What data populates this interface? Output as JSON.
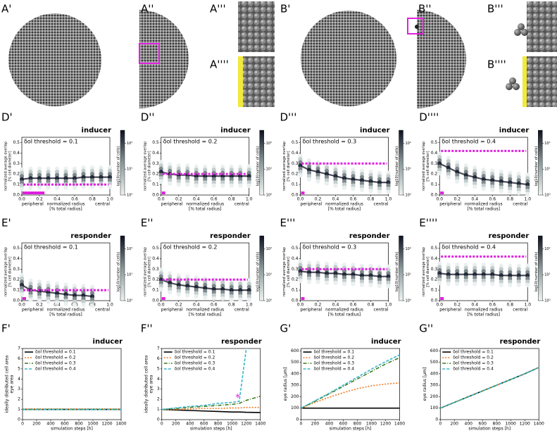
{
  "image_panels": [
    {
      "label": "A'"
    },
    {
      "label": "A''"
    },
    {
      "label": "A'''"
    },
    {
      "label": "A''''"
    },
    {
      "label": "B'"
    },
    {
      "label": "B''"
    },
    {
      "label": "B'''"
    },
    {
      "label": "B''''"
    }
  ],
  "hexbin_axes": {
    "xlim": [
      0,
      1
    ],
    "xticks": [
      {
        "value": 0,
        "label": "0.0"
      },
      0.2,
      0.4,
      0.6,
      0.8,
      {
        "value": 1,
        "label": "1.0"
      }
    ],
    "ylim": [
      0,
      0.55
    ],
    "yticks": [
      {
        "value": 0,
        "label": "0.0"
      },
      0.1,
      0.2,
      0.3,
      0.4,
      0.5
    ],
    "xlabel": "normalized radius",
    "xlabel_note": "[% total radius]",
    "x_left": "peripheral",
    "x_right": "central",
    "ylabel": "normalized average overlap",
    "ylabel_note": "[% cell diameter]",
    "colorbar_label": "log10(number of cells)",
    "colorbar_lim": [
      0,
      2.5
    ],
    "colorbar_ticks": [
      {
        "value": 0,
        "label": "10⁰"
      },
      {
        "value": 1,
        "label": "10¹"
      },
      {
        "value": 2,
        "label": "10²"
      }
    ]
  },
  "chart_data": [
    {
      "type": "hexbin",
      "label": "D'",
      "title": "inducer",
      "annotation": "δol threshold = 0.1",
      "threshold": 0.1,
      "marker_range": [
        0,
        0.25
      ],
      "x": [
        0,
        0.1,
        0.2,
        0.3,
        0.4,
        0.5,
        0.6,
        0.7,
        0.8,
        0.9,
        1
      ],
      "values": [
        0.15,
        0.16,
        0.16,
        0.16,
        0.16,
        0.16,
        0.16,
        0.17,
        0.17,
        0.17,
        0.17
      ]
    },
    {
      "type": "hexbin",
      "label": "D''",
      "title": "inducer",
      "annotation": "δol threshold = 0.2",
      "threshold": 0.2,
      "marker_range": [
        0,
        0.04
      ],
      "x": [
        0,
        0.1,
        0.2,
        0.3,
        0.4,
        0.5,
        0.6,
        0.7,
        0.8,
        0.9,
        1
      ],
      "values": [
        0.22,
        0.2,
        0.19,
        0.19,
        0.18,
        0.18,
        0.18,
        0.18,
        0.18,
        0.18,
        0.18
      ]
    },
    {
      "type": "hexbin",
      "label": "D'''",
      "title": "inducer",
      "annotation": "δol threshold = 0.3",
      "threshold": 0.3,
      "marker_range": [
        0,
        0.04
      ],
      "x": [
        0,
        0.1,
        0.2,
        0.3,
        0.4,
        0.5,
        0.6,
        0.7,
        0.8,
        0.9,
        1
      ],
      "values": [
        0.28,
        0.24,
        0.22,
        0.2,
        0.18,
        0.16,
        0.15,
        0.14,
        0.13,
        0.12,
        0.12
      ]
    },
    {
      "type": "hexbin",
      "label": "D''''",
      "title": "inducer",
      "annotation": "δol threshold = 0.4",
      "threshold": 0.42,
      "marker_range": [
        0,
        0.04
      ],
      "x": [
        0,
        0.1,
        0.2,
        0.3,
        0.4,
        0.5,
        0.6,
        0.7,
        0.8,
        0.9,
        1
      ],
      "values": [
        0.3,
        0.26,
        0.22,
        0.19,
        0.17,
        0.15,
        0.14,
        0.13,
        0.12,
        0.11,
        0.1
      ]
    },
    {
      "type": "hexbin",
      "label": "E'",
      "title": "responder",
      "annotation": "δol threshold = 0.1",
      "threshold": 0.1,
      "marker_range": [
        0,
        0.04
      ],
      "x": [
        0,
        0.1,
        0.2,
        0.3,
        0.4,
        0.5,
        0.6,
        0.7,
        0.8,
        0.9,
        1
      ],
      "values": [
        0.15,
        0.1,
        0.09,
        0.08,
        0.07,
        0.06,
        0.05,
        0.05,
        0.04,
        null,
        null
      ]
    },
    {
      "type": "hexbin",
      "label": "E''",
      "title": "responder",
      "annotation": "δol threshold = 0.2",
      "threshold": 0.2,
      "marker_range": [
        0,
        0.04
      ],
      "x": [
        0,
        0.1,
        0.2,
        0.3,
        0.4,
        0.5,
        0.6,
        0.7,
        0.8,
        0.9,
        1
      ],
      "values": [
        0.2,
        0.17,
        0.15,
        0.14,
        0.13,
        0.12,
        0.11,
        0.11,
        0.1,
        0.1,
        0.1
      ]
    },
    {
      "type": "hexbin",
      "label": "E'''",
      "title": "responder",
      "annotation": "δol threshold = 0.3",
      "threshold": 0.3,
      "marker_range": [
        0,
        0.04
      ],
      "x": [
        0,
        0.1,
        0.2,
        0.3,
        0.4,
        0.5,
        0.6,
        0.7,
        0.8,
        0.9,
        1
      ],
      "values": [
        0.28,
        0.27,
        0.27,
        0.26,
        0.26,
        0.25,
        0.25,
        0.24,
        0.24,
        0.23,
        0.23
      ]
    },
    {
      "type": "hexbin",
      "label": "E''''",
      "title": "responder",
      "annotation": "δol threshold = 0.4",
      "threshold": 0.42,
      "marker_range": [
        0,
        0.04
      ],
      "x": [
        0,
        0.1,
        0.2,
        0.3,
        0.4,
        0.5,
        0.6,
        0.7,
        0.8,
        0.9,
        1
      ],
      "values": [
        0.26,
        0.25,
        0.25,
        0.25,
        0.25,
        0.25,
        0.25,
        0.24,
        0.24,
        0.24,
        0.24
      ]
    },
    {
      "type": "line",
      "label": "F'",
      "title": "inducer",
      "ylabel": "ideally distributed cell area",
      "ylabel_note": "eye area",
      "xlabel": "simulation steps [h]",
      "xlim": [
        0,
        1400
      ],
      "xticks": [
        0,
        200,
        400,
        600,
        800,
        1000,
        1200,
        1400
      ],
      "ylim": [
        0,
        7
      ],
      "yticks": [
        0,
        1,
        2,
        3,
        4,
        5,
        6,
        7
      ],
      "x": [
        0,
        200,
        400,
        600,
        800,
        1000,
        1100,
        1200,
        1400
      ],
      "series": [
        {
          "name": "δol threshold = 0.1",
          "color": "#000000",
          "dash": "",
          "values": [
            1,
            1,
            1,
            1,
            1,
            1,
            1,
            1,
            1
          ]
        },
        {
          "name": "δol threshold = 0.2",
          "color": "#f07a23",
          "dash": "2 2",
          "values": [
            1.05,
            1.05,
            1.05,
            1.05,
            1.05,
            1.05,
            1.05,
            1.05,
            1.05
          ]
        },
        {
          "name": "δol threshold = 0.3",
          "color": "#3d7a1d",
          "dash": "5 2 1 2",
          "values": [
            1,
            1,
            1,
            1,
            1,
            1,
            1,
            1,
            1
          ]
        },
        {
          "name": "δol threshold = 0.4",
          "color": "#3ab5c8",
          "dash": "4 2",
          "values": [
            1,
            1,
            1,
            1,
            1,
            1,
            1,
            1,
            1
          ]
        }
      ]
    },
    {
      "type": "line",
      "label": "F''",
      "title": "responder",
      "ylabel": "ideally distributed cell area",
      "ylabel_note": "eye area",
      "xlabel": "simulation steps [h]",
      "xlim": [
        0,
        1400
      ],
      "xticks": [
        0,
        200,
        400,
        600,
        800,
        1000,
        1200,
        1400
      ],
      "ylim": [
        0,
        7
      ],
      "yticks": [
        0,
        1,
        2,
        3,
        4,
        5,
        6,
        7
      ],
      "x": [
        0,
        200,
        400,
        600,
        800,
        1000,
        1100,
        1200,
        1400
      ],
      "marker": {
        "text": "*",
        "x": 1080,
        "y": 2.1
      },
      "series": [
        {
          "name": "δol threshold = 0.1",
          "color": "#000000",
          "dash": "",
          "values": [
            1,
            0.95,
            0.9,
            0.85,
            0.8,
            0.75,
            0.75,
            0.72,
            0.7
          ]
        },
        {
          "name": "δol threshold = 0.2",
          "color": "#f07a23",
          "dash": "2 2",
          "values": [
            1,
            1,
            1.05,
            1.1,
            1.1,
            1.15,
            1.15,
            1.2,
            1.2
          ]
        },
        {
          "name": "δol threshold = 0.3",
          "color": "#3d7a1d",
          "dash": "5 2 1 2",
          "values": [
            1,
            1.1,
            1.2,
            1.3,
            1.4,
            1.5,
            1.6,
            1.9,
            2.3
          ]
        },
        {
          "name": "δol threshold = 0.4",
          "color": "#3ab5c8",
          "dash": "4 2",
          "values": [
            1,
            1.15,
            1.3,
            1.4,
            1.6,
            1.7,
            1.8,
            7,
            null
          ]
        }
      ]
    },
    {
      "type": "line",
      "label": "G'",
      "title": "inducer",
      "ylabel": "eye radius [µm]",
      "xlabel": "simulation steps [h]",
      "xlim": [
        0,
        1400
      ],
      "xticks": [
        0,
        200,
        400,
        600,
        800,
        1000,
        1200,
        1400
      ],
      "ylim": [
        0,
        620
      ],
      "yticks": [
        0,
        100,
        200,
        300,
        400,
        500,
        600
      ],
      "x": [
        0,
        200,
        400,
        600,
        800,
        1000,
        1200,
        1400
      ],
      "series": [
        {
          "name": "δol threshold = 0.1",
          "color": "#000000",
          "dash": "",
          "values": [
            100,
            100,
            100,
            100,
            100,
            100,
            100,
            100
          ]
        },
        {
          "name": "δol threshold = 0.2",
          "color": "#f07a23",
          "dash": "2 2",
          "values": [
            100,
            150,
            195,
            235,
            270,
            295,
            310,
            320
          ]
        },
        {
          "name": "δol threshold = 0.3",
          "color": "#3d7a1d",
          "dash": "5 2 1 2",
          "values": [
            100,
            160,
            225,
            290,
            355,
            420,
            485,
            540
          ]
        },
        {
          "name": "δol threshold = 0.4",
          "color": "#3ab5c8",
          "dash": "4 2",
          "values": [
            100,
            165,
            230,
            300,
            370,
            440,
            505,
            565
          ]
        }
      ]
    },
    {
      "type": "line",
      "label": "G''",
      "title": "responder",
      "ylabel": "eye radius [µm]",
      "xlabel": "simulation steps [h]",
      "xlim": [
        0,
        1400
      ],
      "xticks": [
        0,
        200,
        400,
        600,
        800,
        1000,
        1200,
        1400
      ],
      "ylim": [
        0,
        620
      ],
      "yticks": [
        0,
        100,
        200,
        300,
        400,
        500,
        600
      ],
      "x": [
        0,
        200,
        400,
        600,
        800,
        1000,
        1200,
        1400
      ],
      "series": [
        {
          "name": "δol threshold = 0.1",
          "color": "#000000",
          "dash": "",
          "values": [
            100,
            150,
            200,
            250,
            300,
            350,
            400,
            455
          ]
        },
        {
          "name": "δol threshold = 0.2",
          "color": "#f07a23",
          "dash": "2 2",
          "values": [
            100,
            150,
            200,
            250,
            300,
            350,
            400,
            455
          ]
        },
        {
          "name": "δol threshold = 0.3",
          "color": "#3d7a1d",
          "dash": "5 2 1 2",
          "values": [
            100,
            150,
            200,
            250,
            300,
            350,
            400,
            455
          ]
        },
        {
          "name": "δol threshold = 0.4",
          "color": "#3ab5c8",
          "dash": "4 2",
          "values": [
            100,
            150,
            200,
            250,
            300,
            350,
            400,
            455
          ]
        }
      ]
    }
  ]
}
